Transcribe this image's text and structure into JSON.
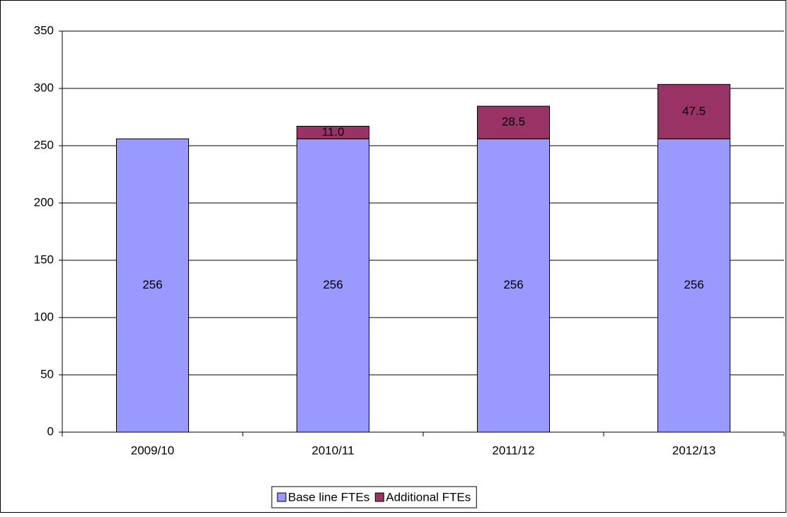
{
  "chart_data": {
    "type": "stacked_bar",
    "categories": [
      "2009/10",
      "2010/11",
      "2011/12",
      "2012/13"
    ],
    "series": [
      {
        "name": "Base line FTEs",
        "color": "#9999ff",
        "values": [
          256,
          256,
          256,
          256
        ]
      },
      {
        "name": "Additional FTEs",
        "color": "#993366",
        "values": [
          null,
          11,
          28.5,
          47.5
        ],
        "value_labels": [
          null,
          "11.0",
          "28.5",
          "47.5"
        ]
      }
    ],
    "ylim": [
      0,
      350
    ],
    "yticks": [
      0,
      50,
      100,
      150,
      200,
      250,
      300,
      350
    ],
    "grid": true,
    "legend": "bottom"
  }
}
